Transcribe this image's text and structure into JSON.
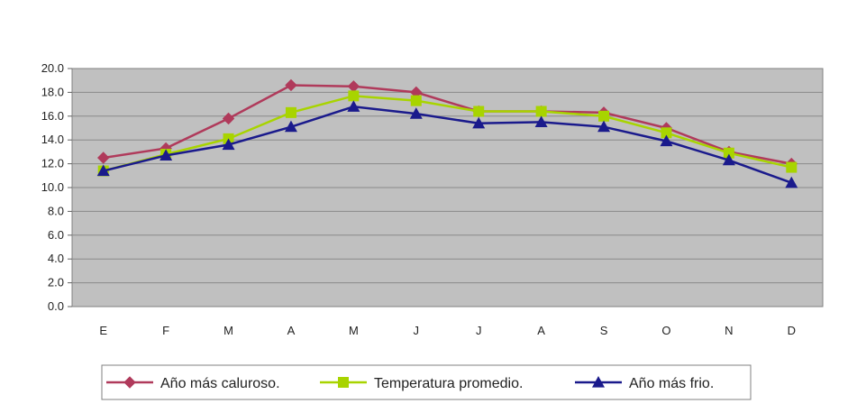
{
  "chart_data": {
    "type": "line",
    "title": "",
    "xlabel": "",
    "ylabel": "",
    "categories": [
      "E",
      "F",
      "M",
      "A",
      "M",
      "J",
      "J",
      "A",
      "S",
      "O",
      "N",
      "D"
    ],
    "ylim": [
      0,
      20
    ],
    "yticks": [
      "0.0",
      "2.0",
      "4.0",
      "6.0",
      "8.0",
      "10.0",
      "12.0",
      "14.0",
      "16.0",
      "18.0",
      "20.0"
    ],
    "grid": true,
    "legend_position": "bottom",
    "series": [
      {
        "name": "Año más caluroso.",
        "color": "#b03a5b",
        "marker": "diamond",
        "values": [
          12.5,
          13.3,
          15.8,
          18.6,
          18.5,
          18.0,
          16.4,
          16.4,
          16.3,
          15.0,
          13.0,
          12.0
        ]
      },
      {
        "name": "Temperatura promedio.",
        "color": "#a8d400",
        "marker": "square",
        "values": [
          11.4,
          12.8,
          14.1,
          16.3,
          17.7,
          17.3,
          16.4,
          16.4,
          16.0,
          14.6,
          12.9,
          11.7
        ]
      },
      {
        "name": "Año más frio.",
        "color": "#1a1a8c",
        "marker": "triangle",
        "values": [
          11.4,
          12.7,
          13.6,
          15.1,
          16.8,
          16.2,
          15.4,
          15.5,
          15.1,
          13.9,
          12.3,
          10.4
        ]
      }
    ]
  }
}
